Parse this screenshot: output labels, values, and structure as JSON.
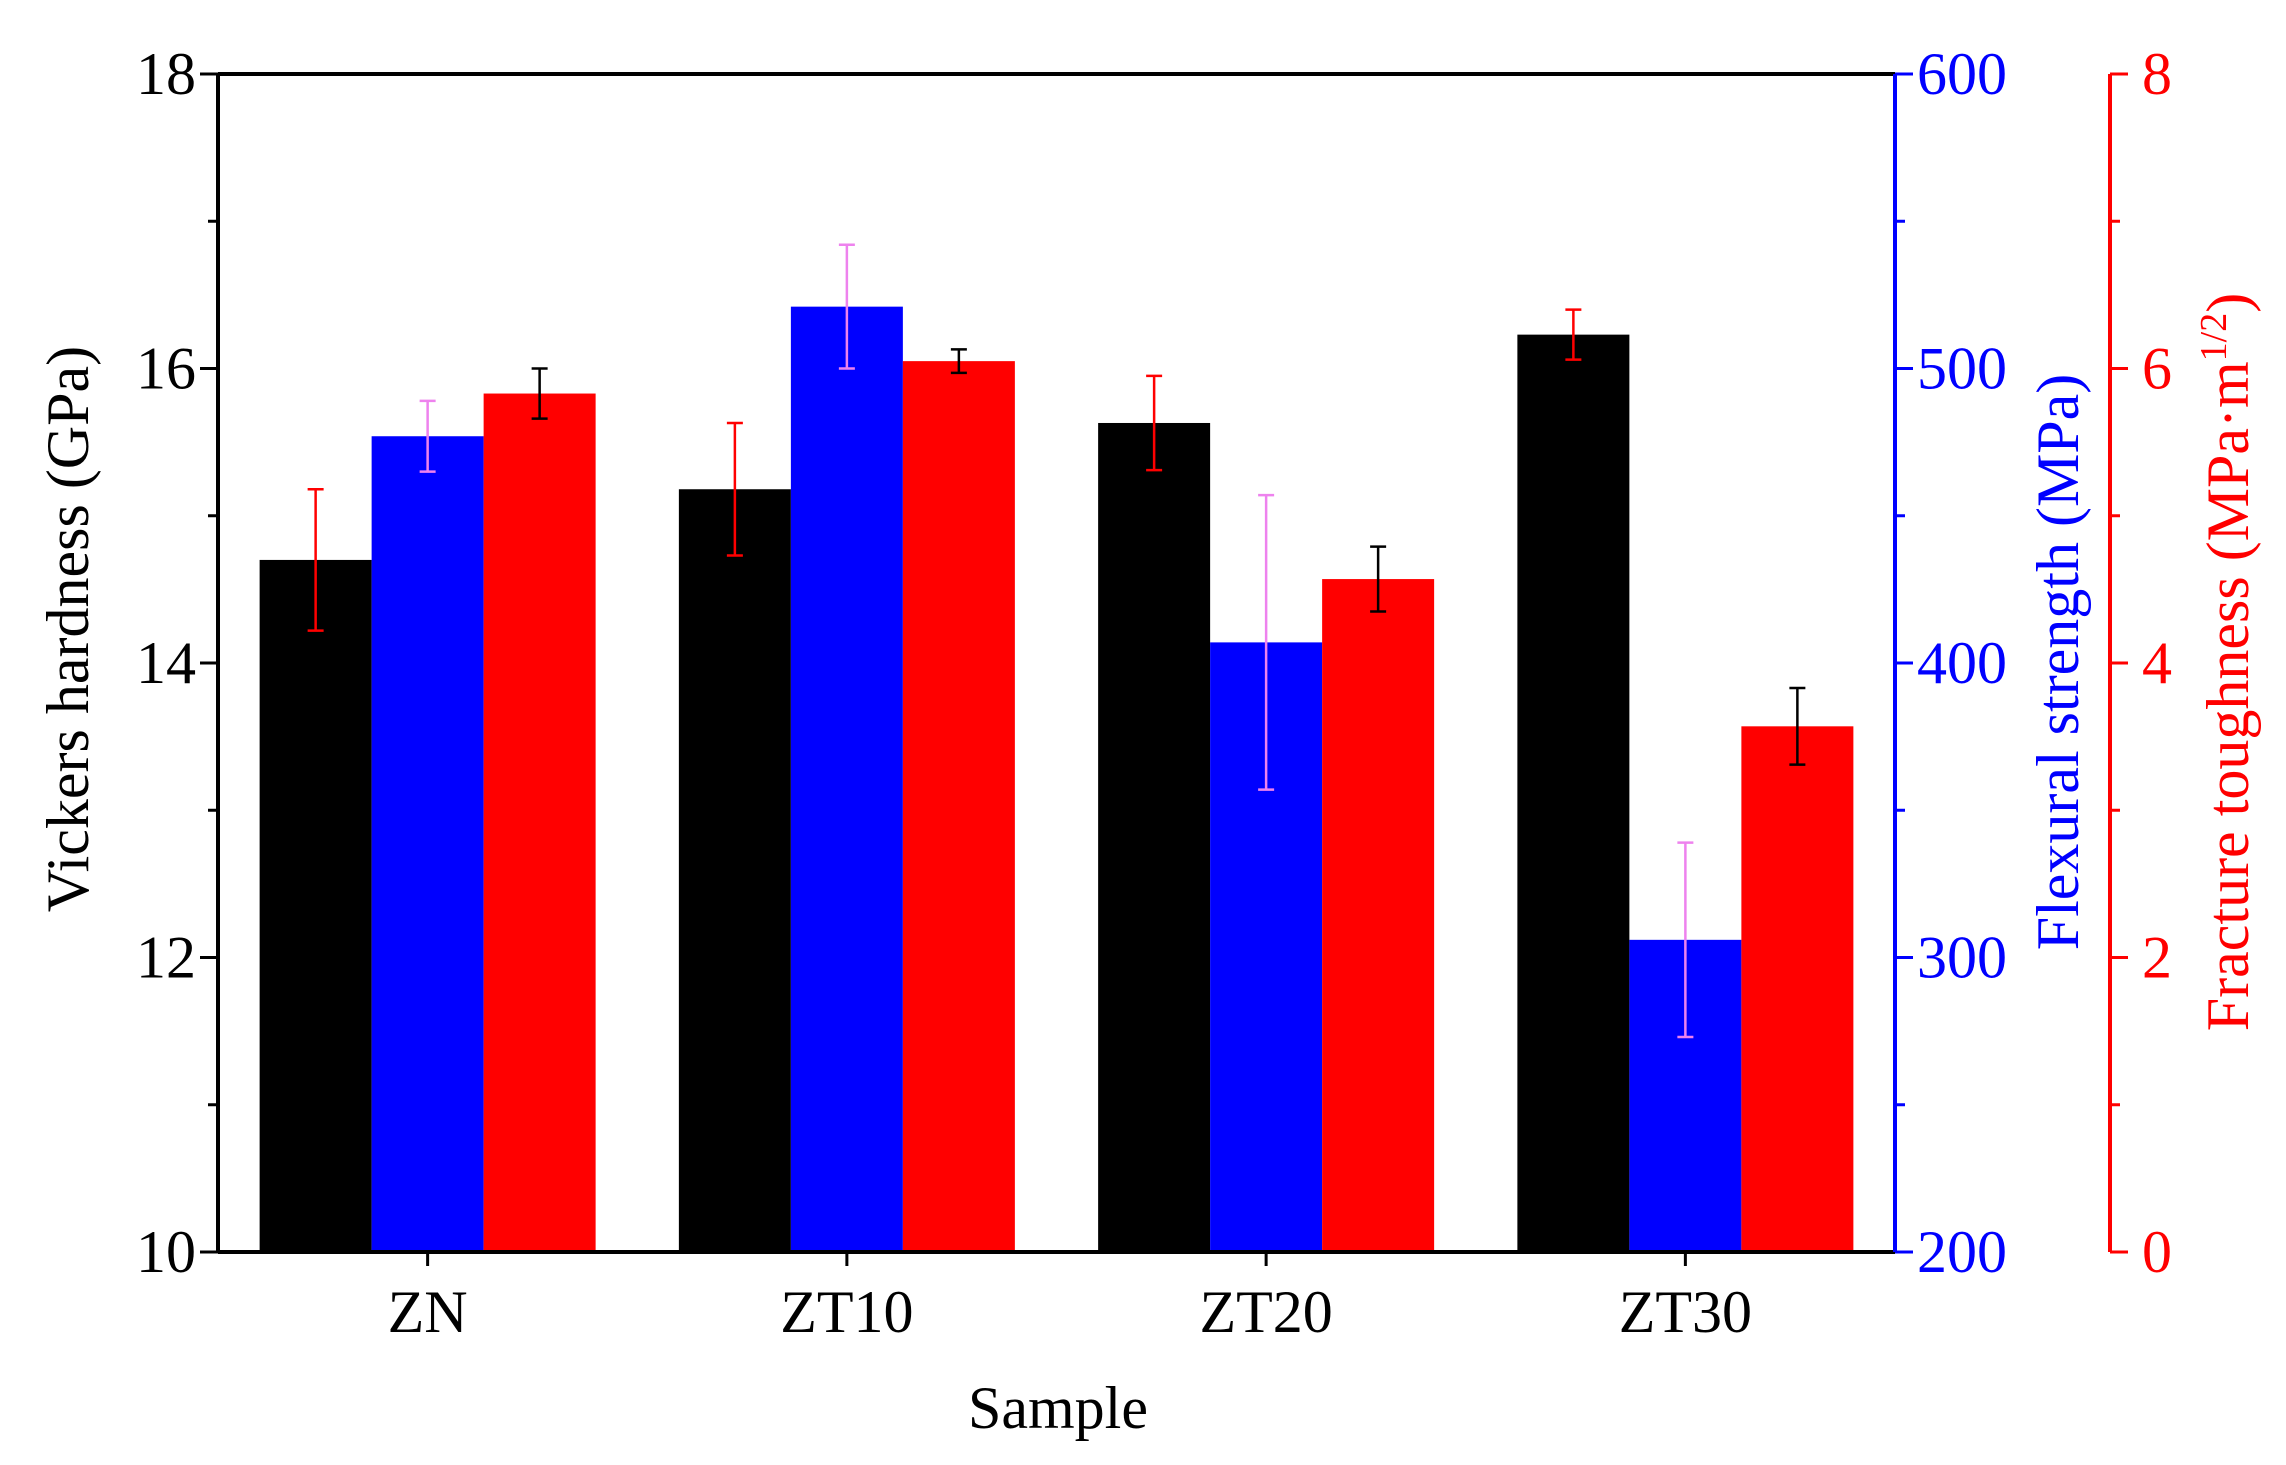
{
  "chart_data": {
    "type": "bar",
    "xlabel": "Sample",
    "categories": [
      "ZN",
      "ZT10",
      "ZT20",
      "ZT30"
    ],
    "axes": {
      "left": {
        "label": "Vickers hardness (GPa)",
        "range": [
          10,
          18
        ],
        "ticks": [
          10,
          12,
          14,
          16,
          18
        ],
        "color": "#000000"
      },
      "right1": {
        "label": "Flexural strength (MPa)",
        "range": [
          200,
          600
        ],
        "ticks": [
          200,
          300,
          400,
          500,
          600
        ],
        "color": "#0000ff"
      },
      "right2": {
        "label_main": "Fracture toughness (MPa·m",
        "label_sup": "1/2",
        "label_end": ")",
        "range": [
          0,
          8
        ],
        "ticks": [
          0,
          2,
          4,
          6,
          8
        ],
        "color": "#ff0000"
      }
    },
    "series": [
      {
        "name": "Vickers hardness",
        "axis": "left",
        "color": "#000000",
        "error_color": "#ff0000",
        "values": [
          14.7,
          15.18,
          15.63,
          16.23
        ],
        "errors": [
          0.48,
          0.45,
          0.32,
          0.17
        ]
      },
      {
        "name": "Flexural strength",
        "axis": "right1",
        "color": "#0000ff",
        "error_color": "#ee82ee",
        "values": [
          477,
          521,
          407,
          306
        ],
        "errors": [
          12,
          21,
          50,
          33
        ]
      },
      {
        "name": "Fracture toughness",
        "axis": "right2",
        "color": "#ff0000",
        "error_color": "#000000",
        "values": [
          5.83,
          6.05,
          4.57,
          3.57
        ],
        "errors": [
          0.17,
          0.08,
          0.22,
          0.26
        ]
      }
    ]
  }
}
